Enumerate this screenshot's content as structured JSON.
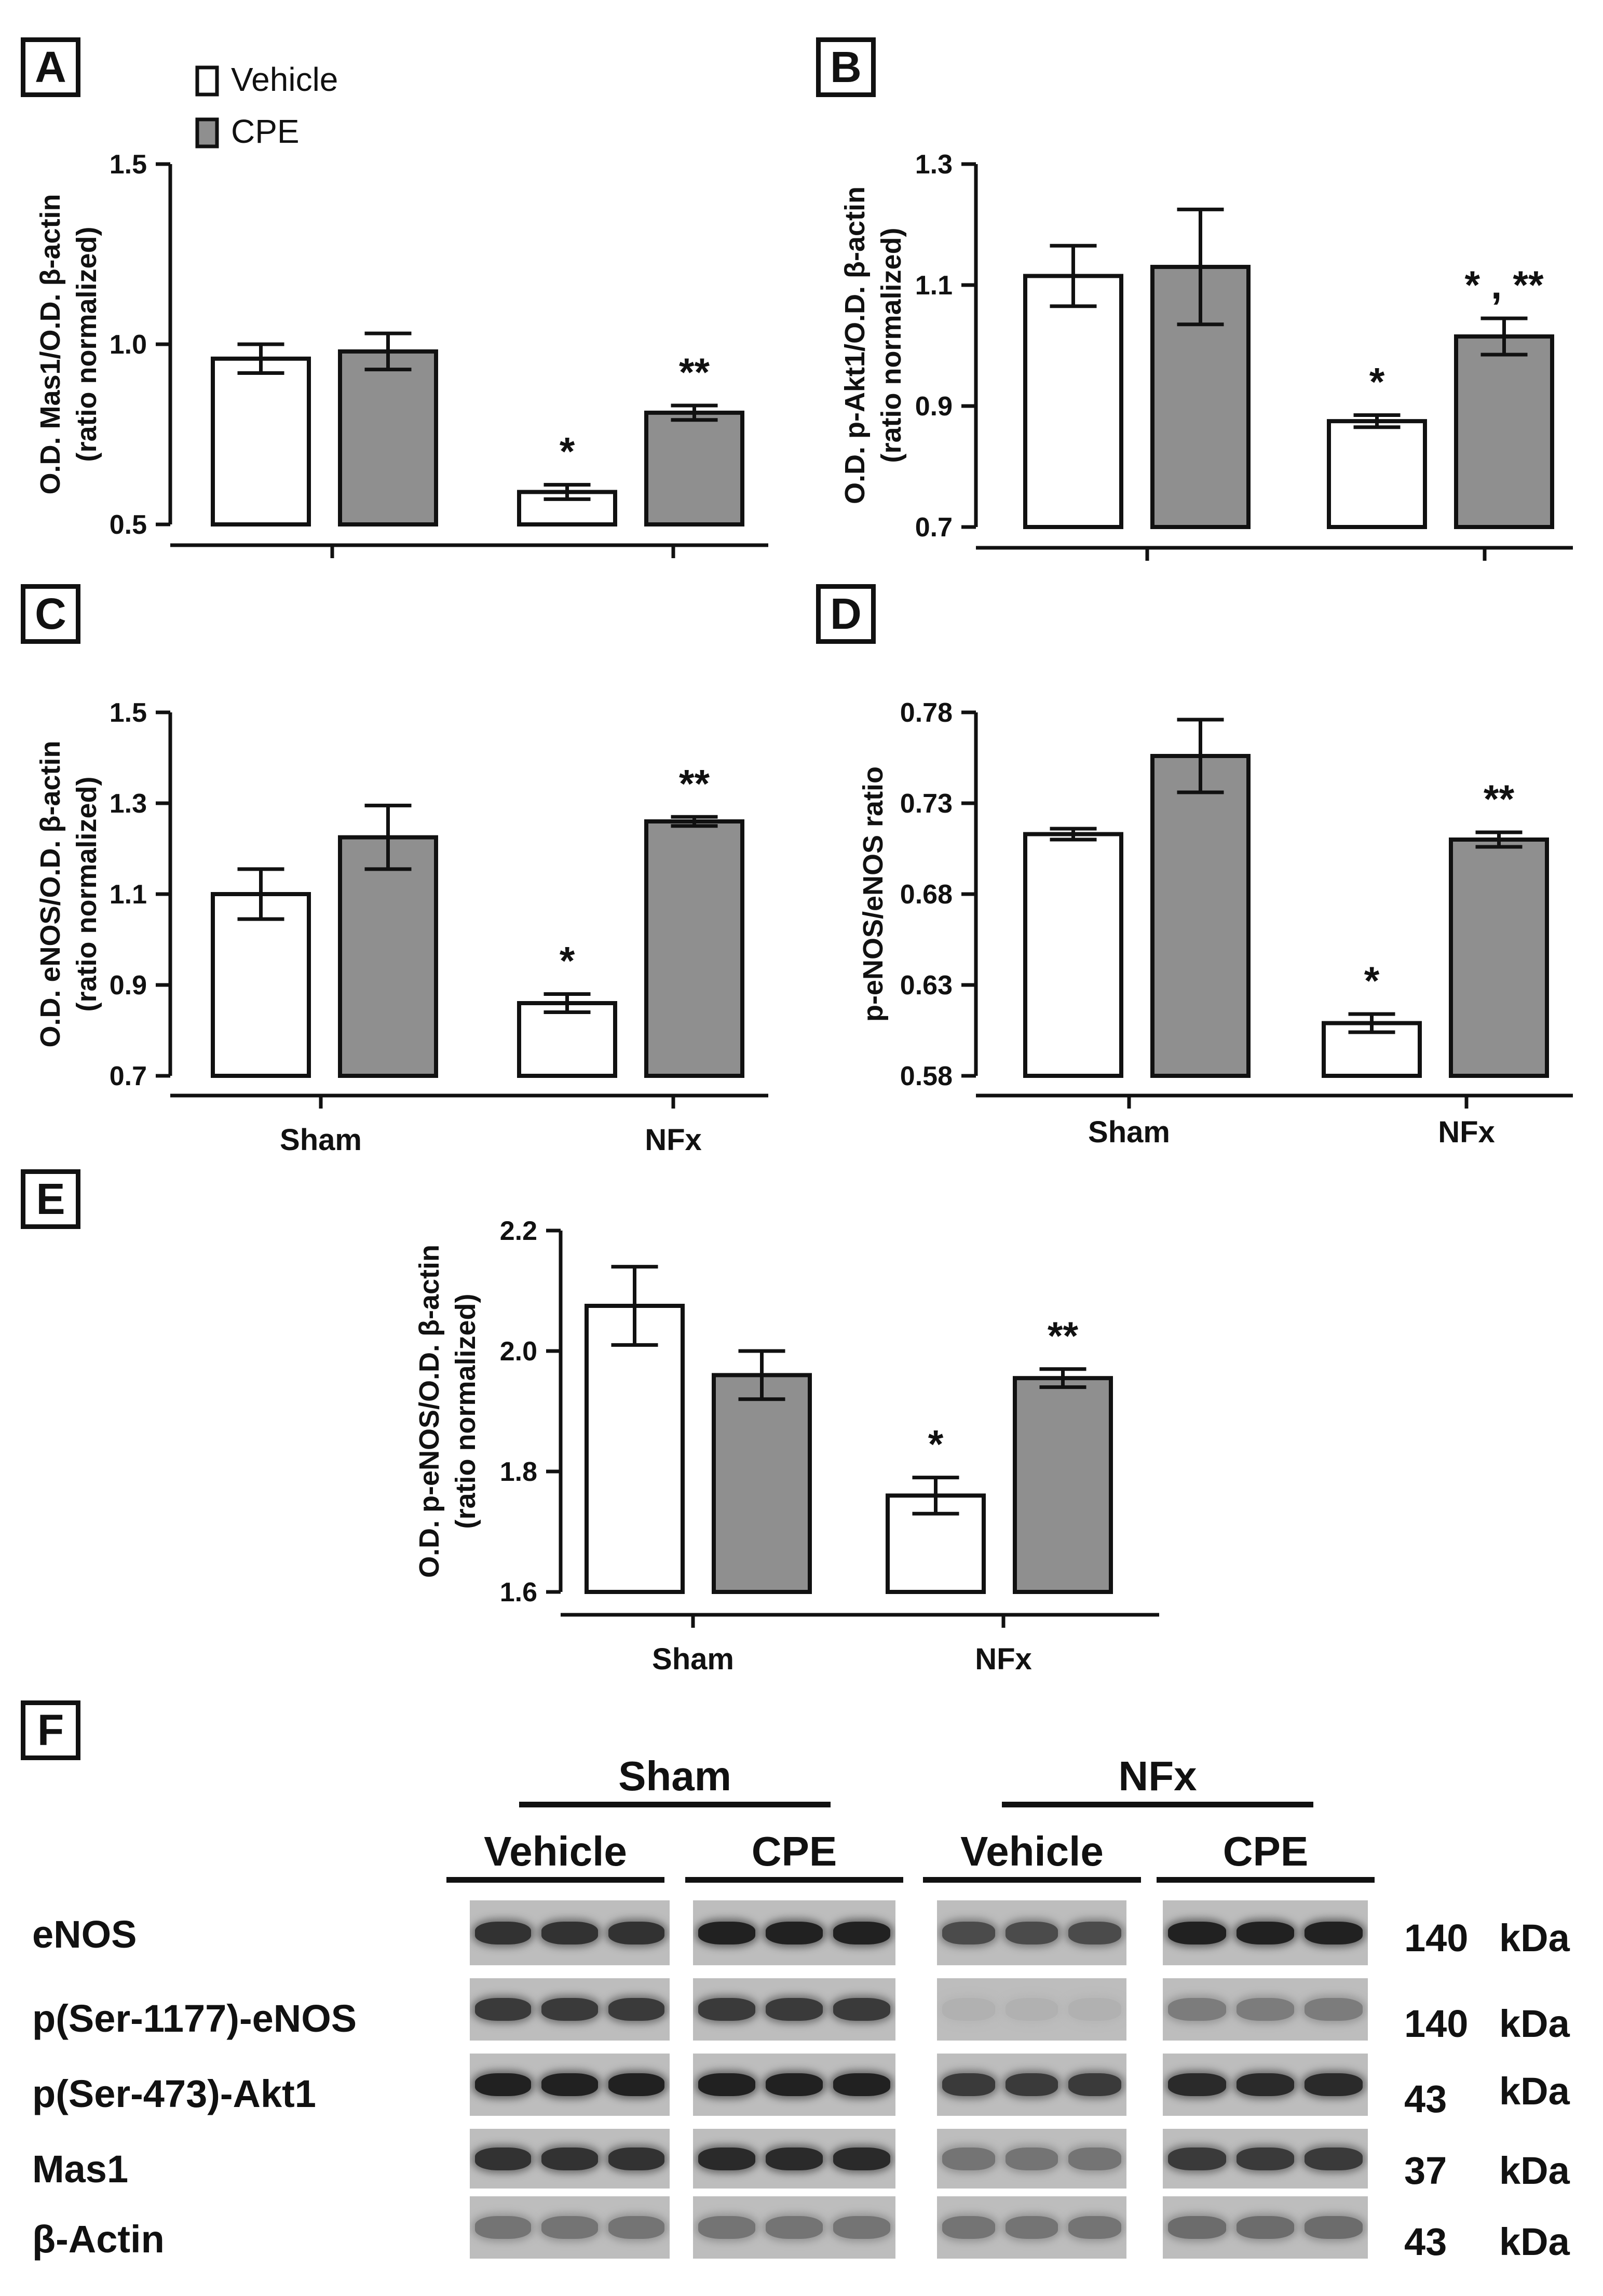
{
  "chart_data": [
    {
      "panel": "A",
      "type": "bar",
      "categories": [
        "Sham",
        "NFx"
      ],
      "show_category_labels": false,
      "ylabel": "O.D. Mas1/O.D. β-actin",
      "ylabel2": "(ratio normalized)",
      "ylim": [
        0.5,
        1.5
      ],
      "yticks": [
        "0.5",
        "1.0",
        "1.5"
      ],
      "legend": "top-left",
      "series": [
        {
          "name": "Vehicle",
          "values": [
            0.96,
            0.59
          ],
          "errors": [
            0.04,
            0.02
          ],
          "annotations": [
            "",
            "*"
          ]
        },
        {
          "name": "CPE",
          "values": [
            0.98,
            0.81
          ],
          "errors": [
            0.05,
            0.02
          ],
          "annotations": [
            "",
            "**"
          ]
        }
      ]
    },
    {
      "panel": "B",
      "type": "bar",
      "categories": [
        "Sham",
        "NFx"
      ],
      "show_category_labels": false,
      "ylabel": "O.D. p-Akt1/O.D. β-actin",
      "ylabel2": "(ratio normalized)",
      "ylim": [
        0.7,
        1.3
      ],
      "yticks": [
        "0.7",
        "0.9",
        "1.1",
        "1.3"
      ],
      "series": [
        {
          "name": "Vehicle",
          "values": [
            1.115,
            0.875
          ],
          "errors": [
            0.05,
            0.01
          ],
          "annotations": [
            "",
            "*"
          ]
        },
        {
          "name": "CPE",
          "values": [
            1.13,
            1.015
          ],
          "errors": [
            0.095,
            0.03
          ],
          "annotations": [
            "",
            "* , **"
          ]
        }
      ]
    },
    {
      "panel": "C",
      "type": "bar",
      "categories": [
        "Sham",
        "NFx"
      ],
      "show_category_labels": true,
      "ylabel": "O.D. eNOS/O.D. β-actin",
      "ylabel2": "(ratio normalized)",
      "ylim": [
        0.7,
        1.5
      ],
      "yticks": [
        "0.7",
        "0.9",
        "1.1",
        "1.3",
        "1.5"
      ],
      "series": [
        {
          "name": "Vehicle",
          "values": [
            1.1,
            0.86
          ],
          "errors": [
            0.055,
            0.02
          ],
          "annotations": [
            "",
            "*"
          ]
        },
        {
          "name": "CPE",
          "values": [
            1.225,
            1.26
          ],
          "errors": [
            0.07,
            0.01
          ],
          "annotations": [
            "",
            "**"
          ]
        }
      ]
    },
    {
      "panel": "D",
      "type": "bar",
      "categories": [
        "Sham",
        "NFx"
      ],
      "show_category_labels": true,
      "ylabel": "p-eNOS/eNOS ratio",
      "ylabel2": "",
      "ylim": [
        0.58,
        0.78
      ],
      "yticks": [
        "0.58",
        "0.63",
        "0.68",
        "0.73",
        "0.78"
      ],
      "series": [
        {
          "name": "Vehicle",
          "values": [
            0.713,
            0.609
          ],
          "errors": [
            0.003,
            0.005
          ],
          "annotations": [
            "",
            "*"
          ]
        },
        {
          "name": "CPE",
          "values": [
            0.756,
            0.71
          ],
          "errors": [
            0.02,
            0.004
          ],
          "annotations": [
            "",
            "**"
          ]
        }
      ]
    },
    {
      "panel": "E",
      "type": "bar",
      "categories": [
        "Sham",
        "NFx"
      ],
      "show_category_labels": true,
      "ylabel": "O.D. p-eNOS/O.D. β-actin",
      "ylabel2": "(ratio normalized)",
      "ylim": [
        1.6,
        2.2
      ],
      "yticks": [
        "1.6",
        "1.8",
        "2.0",
        "2.2"
      ],
      "series": [
        {
          "name": "Vehicle",
          "values": [
            2.075,
            1.76
          ],
          "errors": [
            0.065,
            0.03
          ],
          "annotations": [
            "",
            "*"
          ]
        },
        {
          "name": "CPE",
          "values": [
            1.96,
            1.955
          ],
          "errors": [
            0.04,
            0.015
          ],
          "annotations": [
            "",
            "**"
          ]
        }
      ]
    }
  ],
  "colors": {
    "vehicle": "#ffffff",
    "cpe": "#8f8f8f",
    "ink": "#111111"
  },
  "blot": {
    "panel": "F",
    "groups": [
      "Sham",
      "NFx"
    ],
    "subgroups": [
      "Vehicle",
      "CPE",
      "Vehicle",
      "CPE"
    ],
    "rows": [
      {
        "label": "eNOS",
        "kda": "140",
        "unit": "kDa",
        "intensity": [
          0.85,
          0.95,
          0.7,
          0.95
        ]
      },
      {
        "label": "p(Ser-1177)-eNOS",
        "kda": "140",
        "unit": "kDa",
        "intensity": [
          0.8,
          0.8,
          0.08,
          0.4
        ]
      },
      {
        "label": "p(Ser-473)-Akt1",
        "kda": "43",
        "unit": "kDa",
        "intensity": [
          0.95,
          0.95,
          0.8,
          0.9
        ]
      },
      {
        "label": "Mas1",
        "kda": "37",
        "unit": "kDa",
        "intensity": [
          0.85,
          0.9,
          0.45,
          0.8
        ]
      },
      {
        "label": "β-Actin",
        "kda": "43",
        "unit": "kDa",
        "intensity": [
          0.45,
          0.45,
          0.45,
          0.5
        ]
      }
    ]
  }
}
